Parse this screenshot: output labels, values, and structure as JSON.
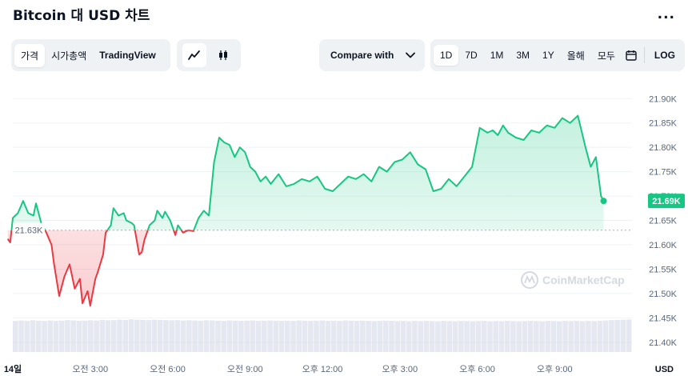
{
  "header": {
    "title": "Bitcoin 대 USD 차트",
    "more_label": "..."
  },
  "view_tabs": [
    "가격",
    "시가총액",
    "TradingView"
  ],
  "active_view": "가격",
  "chart_style": {
    "line_icon": "line-chart-icon",
    "candle_icon": "candlestick-icon",
    "active": "line"
  },
  "compare": {
    "label": "Compare with",
    "icon": "chevron-down-icon"
  },
  "range_tabs": [
    "1D",
    "7D",
    "1M",
    "3M",
    "1Y",
    "올해",
    "모두"
  ],
  "active_range": "1D",
  "calendar_icon": "calendar-icon",
  "log_label": "LOG",
  "watermark": "CoinMarketCap",
  "colors": {
    "up": "#16c784",
    "down": "#ea3943",
    "grid": "#eff2f5",
    "volume": "#cfd6e4",
    "text": "#58667e"
  },
  "chart_data": {
    "type": "line",
    "title": "",
    "xlabel": "",
    "ylabel": "",
    "currency_label": "USD",
    "ylim": [
      21380,
      21930
    ],
    "yticks": [
      21400,
      21450,
      21500,
      21550,
      21600,
      21650,
      21700,
      21750,
      21800,
      21850,
      21900
    ],
    "ytick_labels": [
      "21.40K",
      "21.45K",
      "21.50K",
      "21.55K",
      "21.60K",
      "21.65K",
      "21.70K",
      "21.75K",
      "21.80K",
      "21.85K",
      "21.90K"
    ],
    "xlim": [
      0,
      24
    ],
    "xticks": [
      0,
      3,
      6,
      9,
      12,
      15,
      18,
      21
    ],
    "xtick_labels": [
      "14일",
      "오전 3:00",
      "오전 6:00",
      "오전 9:00",
      "오후 12:00",
      "오후 3:00",
      "오후 6:00",
      "오후 9:00"
    ],
    "baseline": 21630,
    "baseline_label": "21.63K",
    "last_value": 21690,
    "last_label": "21.69K",
    "x": [
      -0.2,
      -0.1,
      0,
      0.2,
      0.4,
      0.6,
      0.8,
      0.9,
      1.1,
      1.3,
      1.5,
      1.6,
      1.8,
      2.0,
      2.2,
      2.4,
      2.6,
      2.7,
      2.9,
      3.0,
      3.2,
      3.3,
      3.5,
      3.6,
      3.8,
      3.9,
      4.1,
      4.3,
      4.4,
      4.6,
      4.7,
      4.9,
      5.0,
      5.1,
      5.3,
      5.5,
      5.6,
      5.8,
      5.9,
      6.1,
      6.3,
      6.4,
      6.6,
      6.8,
      7.0,
      7.2,
      7.4,
      7.6,
      7.8,
      8.0,
      8.2,
      8.4,
      8.6,
      8.8,
      9.0,
      9.2,
      9.4,
      9.6,
      9.8,
      10.0,
      10.3,
      10.6,
      10.9,
      11.2,
      11.5,
      11.8,
      12.1,
      12.4,
      12.7,
      13.0,
      13.3,
      13.6,
      13.9,
      14.2,
      14.5,
      14.8,
      15.1,
      15.4,
      15.7,
      16.0,
      16.3,
      16.6,
      16.9,
      17.2,
      17.5,
      17.8,
      18.1,
      18.4,
      18.6,
      18.8,
      19.0,
      19.2,
      19.5,
      19.8,
      20.1,
      20.4,
      20.7,
      21.0,
      21.3,
      21.6,
      21.9,
      22.2,
      22.4,
      22.6,
      22.7,
      22.8,
      22.9
    ],
    "y": [
      21612,
      21605,
      21655,
      21665,
      21690,
      21665,
      21660,
      21685,
      21645,
      21625,
      21600,
      21560,
      21495,
      21535,
      21560,
      21510,
      21530,
      21480,
      21505,
      21475,
      21530,
      21545,
      21580,
      21625,
      21640,
      21675,
      21660,
      21665,
      21650,
      21645,
      21640,
      21580,
      21585,
      21610,
      21640,
      21650,
      21670,
      21655,
      21668,
      21650,
      21620,
      21640,
      21625,
      21630,
      21628,
      21655,
      21670,
      21660,
      21770,
      21820,
      21810,
      21805,
      21780,
      21800,
      21790,
      21760,
      21750,
      21730,
      21740,
      21725,
      21745,
      21720,
      21725,
      21735,
      21730,
      21740,
      21715,
      21710,
      21725,
      21740,
      21735,
      21745,
      21730,
      21760,
      21750,
      21770,
      21775,
      21790,
      21765,
      21755,
      21710,
      21715,
      21735,
      21720,
      21740,
      21760,
      21840,
      21830,
      21835,
      21825,
      21845,
      21830,
      21820,
      21815,
      21835,
      21830,
      21845,
      21840,
      21860,
      21850,
      21865,
      21800,
      21760,
      21780,
      21740,
      21700,
      21690
    ],
    "volume": [
      0.8,
      0.82,
      0.8,
      0.83,
      0.81,
      0.8,
      0.82,
      0.8,
      0.81,
      0.84,
      0.82,
      0.8,
      0.81,
      0.83,
      0.82,
      0.85,
      0.83,
      0.84,
      0.86,
      0.85,
      0.88,
      0.86,
      0.85,
      0.84,
      0.86,
      0.85,
      0.84,
      0.83,
      0.84,
      0.82,
      0.83,
      0.82,
      0.81,
      0.83,
      0.82,
      0.81,
      0.8,
      0.82,
      0.81,
      0.8,
      0.81,
      0.82,
      0.8,
      0.81,
      0.82,
      0.81,
      0.8,
      0.81,
      0.8,
      0.82,
      0.81,
      0.8,
      0.81,
      0.82,
      0.8,
      0.81,
      0.8,
      0.82,
      0.81,
      0.8,
      0.81,
      0.8,
      0.79,
      0.8,
      0.81,
      0.8,
      0.79,
      0.8,
      0.78,
      0.8,
      0.79,
      0.8,
      0.79,
      0.78,
      0.8,
      0.79,
      0.78,
      0.8,
      0.79,
      0.78,
      0.79,
      0.8,
      0.78,
      0.79,
      0.78,
      0.8,
      0.79,
      0.78,
      0.79,
      0.8,
      0.79,
      0.78,
      0.8,
      0.79,
      0.78,
      0.8,
      0.79,
      0.8,
      0.78,
      0.8,
      0.79,
      0.8,
      0.82,
      0.84,
      0.85,
      0.86,
      0.87
    ]
  }
}
